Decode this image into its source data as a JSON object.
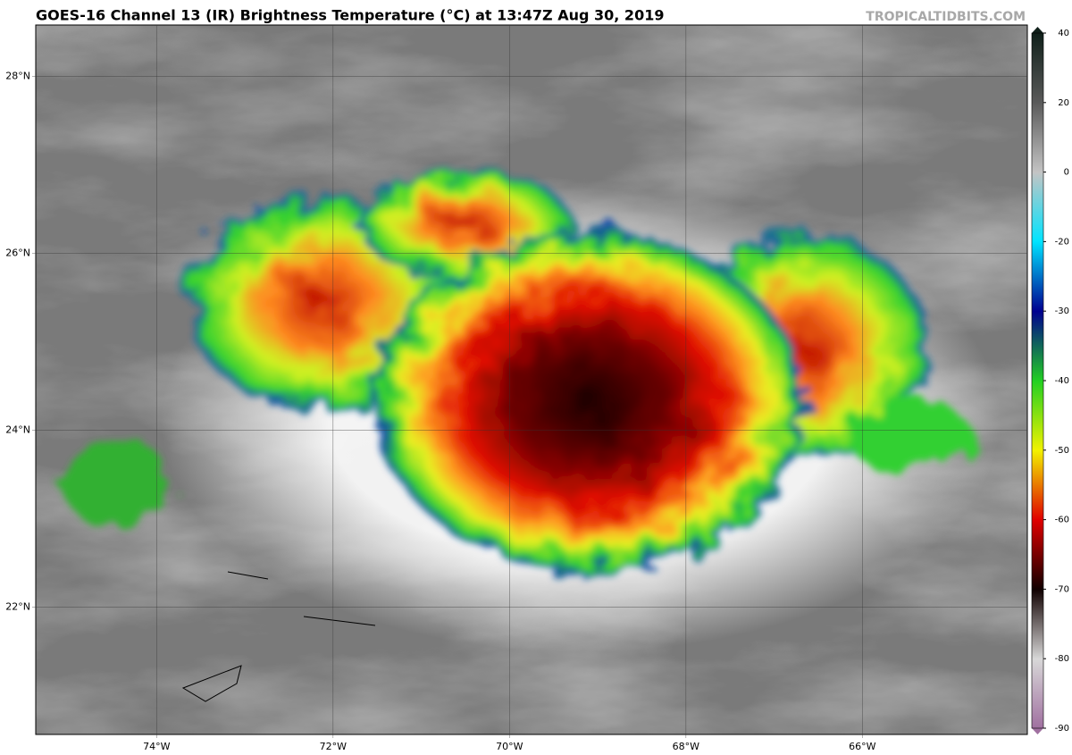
{
  "header": {
    "title": "GOES-16 Channel 13 (IR) Brightness Temperature (°C) at 13:47Z Aug 30, 2019",
    "credit": "TROPICALTIDBITS.COM"
  },
  "map": {
    "lon_lim": [
      -75.37,
      -64.13
    ],
    "lat_lim": [
      20.56,
      28.58
    ],
    "lon_ticks": [
      {
        "value": -74,
        "label": "74°W"
      },
      {
        "value": -72,
        "label": "72°W"
      },
      {
        "value": -70,
        "label": "70°W"
      },
      {
        "value": -68,
        "label": "68°W"
      },
      {
        "value": -66,
        "label": "66°W"
      }
    ],
    "lat_ticks": [
      {
        "value": 28,
        "label": "28°N"
      },
      {
        "value": 26,
        "label": "26°N"
      },
      {
        "value": 24,
        "label": "24°N"
      },
      {
        "value": 22,
        "label": "22°N"
      }
    ]
  },
  "colorbar": {
    "ticks": [
      40,
      20,
      0,
      -20,
      -30,
      -40,
      -50,
      -60,
      -70,
      -80,
      -90
    ],
    "colors": [
      "#10201a",
      "#5a5a5a",
      "#c4c4c4",
      "#00e4ff",
      "#000090",
      "#22d022",
      "#f2f200",
      "#e00000",
      "#100000",
      "#d8d8d8",
      "#a070a0"
    ]
  }
}
